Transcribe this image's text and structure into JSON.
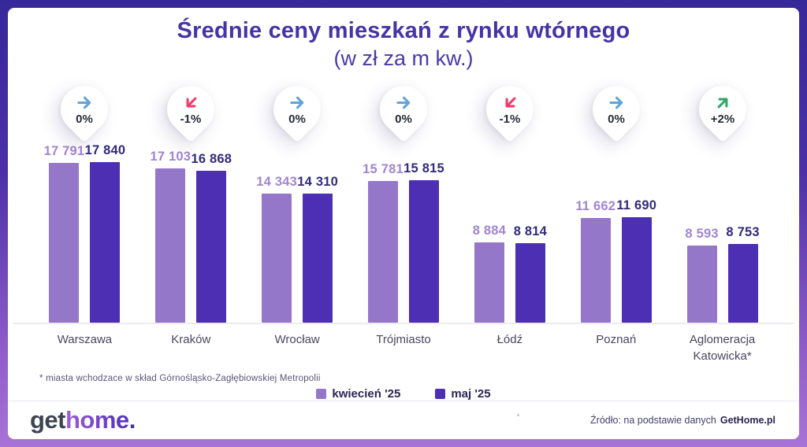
{
  "title": "Średnie ceny mieszkań z rynku wtórnego",
  "subtitle": "(w zł za m kw.)",
  "badges": [
    {
      "label": "0%",
      "direction": "right",
      "color": "#63a3da"
    },
    {
      "label": "-1%",
      "direction": "down-left",
      "color": "#f23a6b"
    },
    {
      "label": "0%",
      "direction": "right",
      "color": "#63a3da"
    },
    {
      "label": "0%",
      "direction": "right",
      "color": "#63a3da"
    },
    {
      "label": "-1%",
      "direction": "down-left",
      "color": "#f23a6b"
    },
    {
      "label": "0%",
      "direction": "right",
      "color": "#63a3da"
    },
    {
      "label": "+2%",
      "direction": "up-right",
      "color": "#2fa866"
    }
  ],
  "chart_data": {
    "type": "bar",
    "title": "Średnie ceny mieszkań z rynku wtórnego (w zł za m kw.)",
    "categories": [
      "Warszawa",
      "Kraków",
      "Wrocław",
      "Trójmiasto",
      "Łódź",
      "Poznań",
      "Aglomeracja Katowicka*"
    ],
    "series": [
      {
        "name": "kwiecień '25",
        "color": "#9577c9",
        "values": [
          17791,
          17103,
          14343,
          15781,
          8884,
          11662,
          8593
        ],
        "display": [
          "17 791",
          "17 103",
          "14 343",
          "15 781",
          "8 884",
          "11 662",
          "8 593"
        ]
      },
      {
        "name": "maj '25",
        "color": "#4c2fb3",
        "values": [
          17840,
          16868,
          14310,
          15815,
          8814,
          11690,
          8753
        ],
        "display": [
          "17 840",
          "16 868",
          "14 310",
          "15 815",
          "8 814",
          "11 690",
          "8 753"
        ]
      }
    ],
    "percent_change": [
      "0%",
      "-1%",
      "0%",
      "0%",
      "-1%",
      "0%",
      "+2%"
    ],
    "ylim": [
      0,
      17840
    ],
    "grid": false,
    "legend_position": "bottom"
  },
  "footnote": "* miasta wchodzace w skład Górnośląsko-Zagłębiowskiej Metropolii",
  "legend": {
    "items": [
      {
        "label": "kwiecień '25",
        "color": "#9577c9"
      },
      {
        "label": "maj '25",
        "color": "#4c2fb3"
      }
    ]
  },
  "footer": {
    "logo": {
      "part1": "get",
      "part2": "home",
      "dot": "."
    },
    "source_prefix": "Źródło: na podstawie danych",
    "source_brand": "GetHome.pl"
  }
}
